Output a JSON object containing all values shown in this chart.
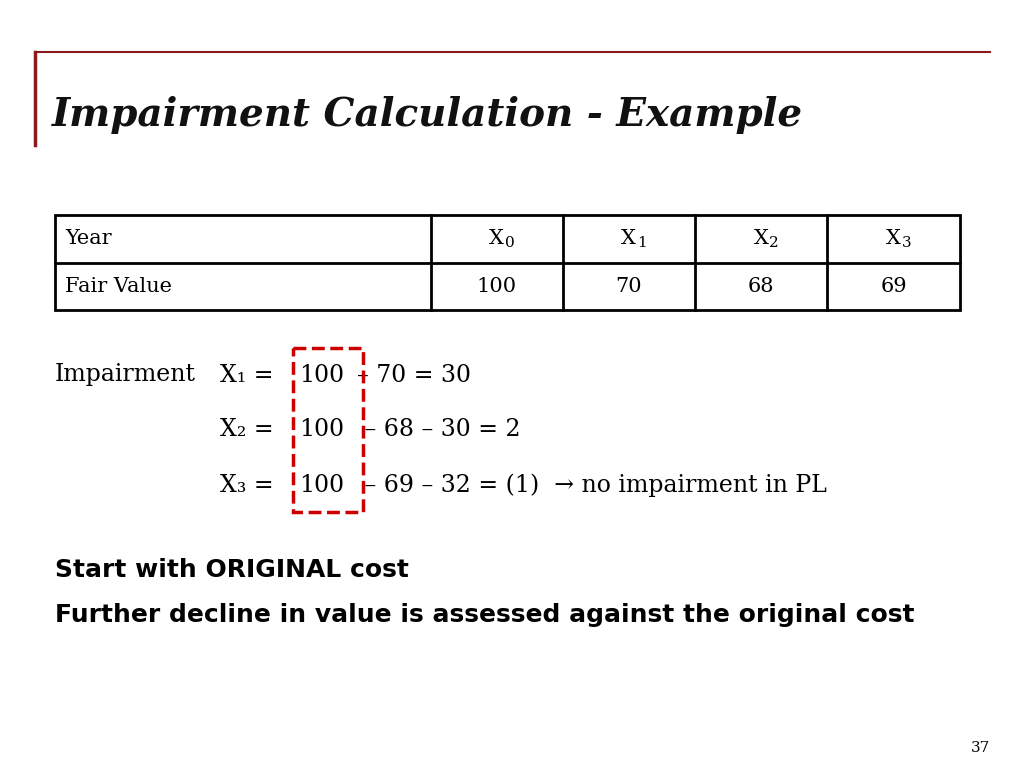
{
  "title": "Impairment Calculation - Example",
  "title_color": "#111111",
  "bg_color": "#ffffff",
  "accent_line_color": "#8b1a1a",
  "table_headers": [
    "Year",
    "X0",
    "X1",
    "X2",
    "X3"
  ],
  "table_row": [
    "Fair Value",
    "100",
    "70",
    "68",
    "69"
  ],
  "impairment_label": "Impairment",
  "bottom_text1": "Start with ORIGINAL cost",
  "bottom_text2": "Further decline in value is assessed against the original cost",
  "page_number": "37",
  "dashed_box_color": "#cc0000",
  "title_fontsize": 28,
  "table_fontsize": 15,
  "body_fontsize": 17,
  "bold_fontsize": 18
}
